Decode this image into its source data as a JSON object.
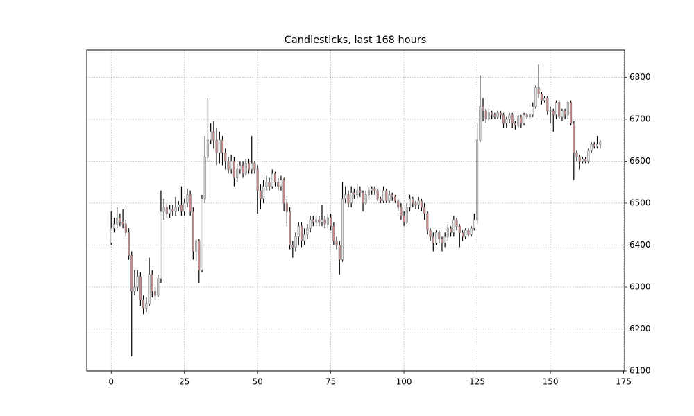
{
  "chart_data": {
    "type": "candlestick",
    "title": "Candlesticks, last 168 hours",
    "x": [
      0,
      1,
      2,
      3,
      4,
      5,
      6,
      7,
      8,
      9,
      10,
      11,
      12,
      13,
      14,
      15,
      16,
      17,
      18,
      19,
      20,
      21,
      22,
      23,
      24,
      25,
      26,
      27,
      28,
      29,
      30,
      31,
      32,
      33,
      34,
      35,
      36,
      37,
      38,
      39,
      40,
      41,
      42,
      43,
      44,
      45,
      46,
      47,
      48,
      49,
      50,
      51,
      52,
      53,
      54,
      55,
      56,
      57,
      58,
      59,
      60,
      61,
      62,
      63,
      64,
      65,
      66,
      67,
      68,
      69,
      70,
      71,
      72,
      73,
      74,
      75,
      76,
      77,
      78,
      79,
      80,
      81,
      82,
      83,
      84,
      85,
      86,
      87,
      88,
      89,
      90,
      91,
      92,
      93,
      94,
      95,
      96,
      97,
      98,
      99,
      100,
      101,
      102,
      103,
      104,
      105,
      106,
      107,
      108,
      109,
      110,
      111,
      112,
      113,
      114,
      115,
      116,
      117,
      118,
      119,
      120,
      121,
      122,
      123,
      124,
      125,
      126,
      127,
      128,
      129,
      130,
      131,
      132,
      133,
      134,
      135,
      136,
      137,
      138,
      139,
      140,
      141,
      142,
      143,
      144,
      145,
      146,
      147,
      148,
      149,
      150,
      151,
      152,
      153,
      154,
      155,
      156,
      157,
      158,
      159,
      160,
      161,
      162,
      163,
      164,
      165,
      166,
      167
    ],
    "open": [
      6405,
      6440,
      6450,
      6465,
      6455,
      6450,
      6430,
      6375,
      6290,
      6300,
      6325,
      6270,
      6250,
      6260,
      6330,
      6290,
      6280,
      6320,
      6480,
      6490,
      6475,
      6485,
      6480,
      6490,
      6495,
      6480,
      6500,
      6520,
      6480,
      6385,
      6410,
      6340,
      6510,
      6610,
      6650,
      6670,
      6650,
      6620,
      6650,
      6620,
      6600,
      6580,
      6600,
      6560,
      6580,
      6590,
      6570,
      6595,
      6580,
      6595,
      6580,
      6530,
      6510,
      6540,
      6550,
      6540,
      6570,
      6550,
      6540,
      6555,
      6500,
      6480,
      6400,
      6395,
      6420,
      6445,
      6410,
      6425,
      6440,
      6460,
      6455,
      6460,
      6455,
      6460,
      6450,
      6465,
      6445,
      6410,
      6400,
      6365,
      6510,
      6520,
      6500,
      6525,
      6520,
      6530,
      6525,
      6500,
      6520,
      6530,
      6535,
      6530,
      6510,
      6505,
      6530,
      6505,
      6520,
      6515,
      6505,
      6490,
      6470,
      6455,
      6490,
      6510,
      6500,
      6495,
      6505,
      6490,
      6475,
      6435,
      6420,
      6405,
      6430,
      6415,
      6405,
      6420,
      6440,
      6430,
      6460,
      6445,
      6430,
      6420,
      6435,
      6425,
      6440,
      6460,
      6650,
      6730,
      6720,
      6700,
      6715,
      6710,
      6705,
      6715,
      6710,
      6690,
      6700,
      6710,
      6690,
      6685,
      6705,
      6690,
      6710,
      6705,
      6710,
      6730,
      6775,
      6760,
      6745,
      6750,
      6720,
      6720,
      6710,
      6740,
      6705,
      6720,
      6710,
      6740,
      6690,
      6620,
      6610,
      6600,
      6605,
      6600,
      6625,
      6640,
      6635,
      6640
    ],
    "high": [
      6480,
      6465,
      6490,
      6475,
      6485,
      6460,
      6440,
      6385,
      6340,
      6340,
      6335,
      6280,
      6275,
      6370,
      6340,
      6300,
      6330,
      6530,
      6510,
      6500,
      6495,
      6495,
      6515,
      6505,
      6540,
      6510,
      6535,
      6530,
      6490,
      6415,
      6415,
      6520,
      6660,
      6750,
      6690,
      6695,
      6680,
      6670,
      6660,
      6630,
      6610,
      6615,
      6610,
      6595,
      6600,
      6600,
      6605,
      6605,
      6660,
      6600,
      6590,
      6545,
      6555,
      6565,
      6560,
      6580,
      6575,
      6560,
      6565,
      6560,
      6510,
      6490,
      6410,
      6430,
      6455,
      6455,
      6440,
      6450,
      6470,
      6470,
      6470,
      6470,
      6495,
      6470,
      6475,
      6475,
      6455,
      6420,
      6410,
      6550,
      6540,
      6530,
      6540,
      6535,
      6545,
      6540,
      6530,
      6530,
      6540,
      6540,
      6540,
      6535,
      6515,
      6540,
      6535,
      6530,
      6525,
      6520,
      6510,
      6500,
      6480,
      6500,
      6520,
      6515,
      6505,
      6515,
      6510,
      6500,
      6480,
      6440,
      6430,
      6435,
      6435,
      6420,
      6430,
      6450,
      6445,
      6470,
      6465,
      6450,
      6435,
      6440,
      6440,
      6445,
      6475,
      6690,
      6805,
      6750,
      6725,
      6725,
      6720,
      6715,
      6720,
      6720,
      6715,
      6705,
      6715,
      6715,
      6695,
      6710,
      6710,
      6715,
      6715,
      6715,
      6740,
      6780,
      6830,
      6765,
      6755,
      6755,
      6730,
      6725,
      6745,
      6745,
      6725,
      6725,
      6745,
      6745,
      6695,
      6625,
      6615,
      6610,
      6610,
      6630,
      6645,
      6645,
      6660,
      6650
    ],
    "low": [
      6400,
      6430,
      6440,
      6445,
      6440,
      6420,
      6365,
      6135,
      6280,
      6290,
      6255,
      6235,
      6240,
      6255,
      6275,
      6270,
      6275,
      6310,
      6460,
      6465,
      6465,
      6470,
      6470,
      6480,
      6470,
      6470,
      6490,
      6470,
      6365,
      6360,
      6310,
      6335,
      6500,
      6600,
      6640,
      6630,
      6590,
      6595,
      6590,
      6580,
      6570,
      6570,
      6540,
      6550,
      6570,
      6560,
      6565,
      6570,
      6570,
      6570,
      6475,
      6485,
      6500,
      6530,
      6530,
      6535,
      6540,
      6530,
      6530,
      6480,
      6445,
      6390,
      6370,
      6385,
      6400,
      6395,
      6400,
      6415,
      6430,
      6445,
      6445,
      6445,
      6445,
      6440,
      6440,
      6435,
      6400,
      6390,
      6330,
      6360,
      6500,
      6490,
      6490,
      6510,
      6510,
      6515,
      6480,
      6495,
      6510,
      6520,
      6520,
      6505,
      6500,
      6500,
      6500,
      6500,
      6505,
      6500,
      6480,
      6460,
      6445,
      6450,
      6480,
      6490,
      6485,
      6485,
      6480,
      6460,
      6425,
      6410,
      6385,
      6400,
      6405,
      6385,
      6395,
      6410,
      6420,
      6420,
      6435,
      6395,
      6410,
      6415,
      6420,
      6420,
      6435,
      6450,
      6645,
      6695,
      6690,
      6695,
      6700,
      6700,
      6700,
      6700,
      6680,
      6680,
      6690,
      6680,
      6675,
      6680,
      6680,
      6685,
      6700,
      6700,
      6705,
      6725,
      6750,
      6735,
      6740,
      6710,
      6690,
      6670,
      6700,
      6700,
      6695,
      6700,
      6700,
      6685,
      6555,
      6600,
      6580,
      6595,
      6595,
      6595,
      6620,
      6630,
      6630,
      6630
    ],
    "close": [
      6440,
      6450,
      6465,
      6455,
      6450,
      6430,
      6375,
      6290,
      6300,
      6325,
      6270,
      6250,
      6260,
      6330,
      6290,
      6280,
      6320,
      6480,
      6490,
      6475,
      6485,
      6480,
      6490,
      6495,
      6480,
      6500,
      6520,
      6480,
      6385,
      6410,
      6340,
      6510,
      6610,
      6650,
      6670,
      6650,
      6620,
      6650,
      6620,
      6600,
      6580,
      6600,
      6560,
      6580,
      6590,
      6570,
      6595,
      6580,
      6595,
      6580,
      6530,
      6510,
      6540,
      6550,
      6540,
      6570,
      6550,
      6540,
      6555,
      6500,
      6480,
      6400,
      6395,
      6420,
      6445,
      6410,
      6425,
      6440,
      6460,
      6455,
      6460,
      6455,
      6460,
      6450,
      6465,
      6445,
      6410,
      6400,
      6365,
      6510,
      6520,
      6500,
      6525,
      6520,
      6530,
      6525,
      6500,
      6520,
      6530,
      6535,
      6530,
      6510,
      6505,
      6530,
      6505,
      6520,
      6515,
      6505,
      6490,
      6470,
      6455,
      6490,
      6510,
      6500,
      6495,
      6505,
      6490,
      6475,
      6435,
      6420,
      6405,
      6430,
      6415,
      6405,
      6420,
      6440,
      6430,
      6460,
      6445,
      6430,
      6420,
      6435,
      6425,
      6440,
      6460,
      6650,
      6730,
      6720,
      6700,
      6715,
      6710,
      6705,
      6715,
      6710,
      6690,
      6700,
      6710,
      6690,
      6685,
      6705,
      6690,
      6710,
      6705,
      6710,
      6730,
      6775,
      6760,
      6745,
      6750,
      6720,
      6720,
      6710,
      6740,
      6705,
      6720,
      6710,
      6740,
      6690,
      6620,
      6610,
      6600,
      6605,
      6600,
      6625,
      6640,
      6635,
      6640,
      6645
    ],
    "up_color": "#e6e6e6",
    "down_color": "#cd8a8a",
    "edge_color": "#7a7a7a",
    "wick_color": "#000000",
    "xlim": [
      -8.35,
      175.35
    ],
    "xticks": [
      0,
      25,
      50,
      75,
      100,
      125,
      150,
      175
    ],
    "ylim": [
      6100,
      6865
    ],
    "yticks": [
      6100,
      6200,
      6300,
      6400,
      6500,
      6600,
      6700,
      6800
    ],
    "grid": true,
    "y_axis_side": "right"
  }
}
